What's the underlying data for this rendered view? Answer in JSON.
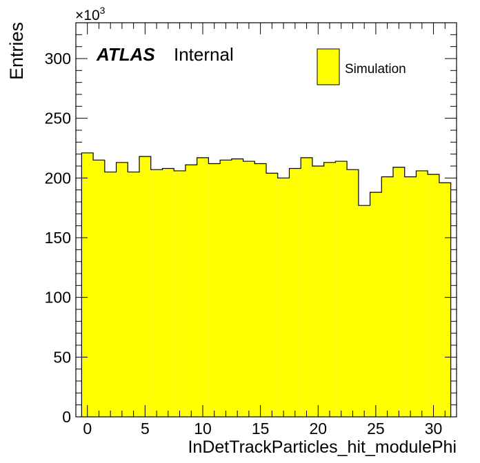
{
  "chart_data": {
    "type": "bar",
    "title": "",
    "xlabel": "InDetTrackParticles_hit_modulePhi",
    "ylabel": "Entries",
    "y_multiplier_label": "×10",
    "y_multiplier_exponent": "3",
    "xlim": [
      -1,
      32
    ],
    "ylim": [
      0,
      330
    ],
    "x_ticks": [
      0,
      5,
      10,
      15,
      20,
      25,
      30
    ],
    "y_ticks": [
      0,
      50,
      100,
      150,
      200,
      250,
      300
    ],
    "bin_width": 1,
    "bin_centers": [
      0,
      1,
      2,
      3,
      4,
      5,
      6,
      7,
      8,
      9,
      10,
      11,
      12,
      13,
      14,
      15,
      16,
      17,
      18,
      19,
      20,
      21,
      22,
      23,
      24,
      25,
      26,
      27,
      28,
      29,
      30,
      31
    ],
    "values": [
      221,
      215,
      205,
      213,
      205,
      218,
      207,
      208,
      206,
      211,
      217,
      212,
      215,
      216,
      214,
      212,
      204,
      200,
      208,
      217,
      210,
      213,
      214,
      207,
      177,
      188,
      201,
      209,
      201,
      206,
      203,
      196
    ],
    "series": [
      {
        "name": "Simulation",
        "fill": "#ffff00",
        "stroke": "#000000"
      }
    ],
    "legend_position": "top-right",
    "grid": false
  },
  "label": {
    "experiment": "ATLAS",
    "status": "Internal"
  }
}
